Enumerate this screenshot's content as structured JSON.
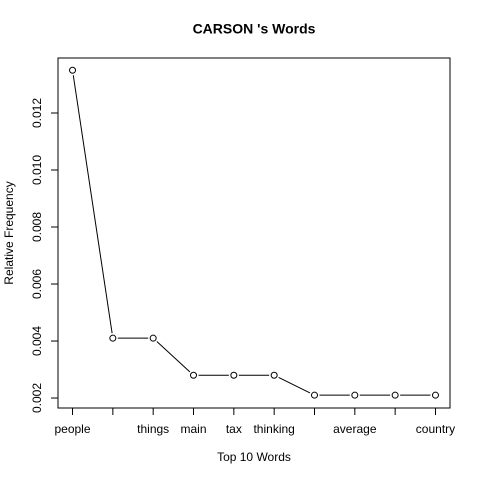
{
  "chart_data": {
    "type": "line",
    "title": "CARSON 's Words",
    "x_label": "Top 10 Words",
    "y_label": "Relative Frequency",
    "categories": [
      "people",
      null,
      "things",
      "main",
      "tax",
      "thinking",
      null,
      "average",
      null,
      "country"
    ],
    "values": [
      0.0135,
      0.0041,
      0.0041,
      0.0028,
      0.0028,
      0.0028,
      0.0021,
      0.0021,
      0.0021,
      0.0021
    ],
    "color": "#000000",
    "ylim": [
      0.00165,
      0.01393
    ],
    "yticks": [
      {
        "value": 0.002,
        "label": "0.002"
      },
      {
        "value": 0.004,
        "label": "0.004"
      },
      {
        "value": 0.006,
        "label": "0.006"
      },
      {
        "value": 0.008,
        "label": "0.008"
      },
      {
        "value": 0.01,
        "label": "0.010"
      },
      {
        "value": 0.012,
        "label": "0.012"
      }
    ],
    "grid": false
  }
}
